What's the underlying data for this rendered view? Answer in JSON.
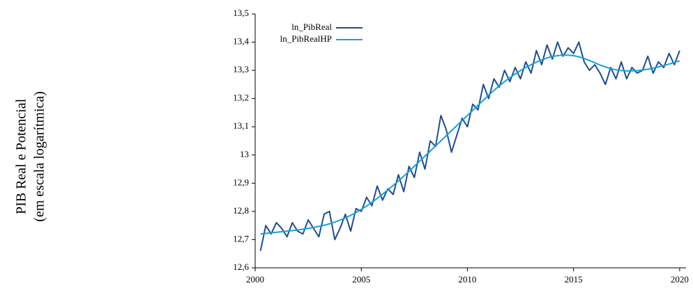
{
  "chart_data": {
    "type": "line",
    "y_label": [
      "PIB Real e Potencial",
      "(em escala logarítmica)"
    ],
    "x": [
      2000.25,
      2000.5,
      2000.75,
      2001,
      2001.25,
      2001.5,
      2001.75,
      2002,
      2002.25,
      2002.5,
      2002.75,
      2003,
      2003.25,
      2003.5,
      2003.75,
      2004,
      2004.25,
      2004.5,
      2004.75,
      2005,
      2005.25,
      2005.5,
      2005.75,
      2006,
      2006.25,
      2006.5,
      2006.75,
      2007,
      2007.25,
      2007.5,
      2007.75,
      2008,
      2008.25,
      2008.5,
      2008.75,
      2009,
      2009.25,
      2009.5,
      2009.75,
      2010,
      2010.25,
      2010.5,
      2010.75,
      2011,
      2011.25,
      2011.5,
      2011.75,
      2012,
      2012.25,
      2012.5,
      2012.75,
      2013,
      2013.25,
      2013.5,
      2013.75,
      2014,
      2014.25,
      2014.5,
      2014.75,
      2015,
      2015.25,
      2015.5,
      2015.75,
      2016,
      2016.25,
      2016.5,
      2016.75,
      2017,
      2017.25,
      2017.5,
      2017.75,
      2018,
      2018.25,
      2018.5,
      2018.75,
      2019,
      2019.25,
      2019.5,
      2019.75,
      2020
    ],
    "series": [
      {
        "name": "ln_PibReal",
        "color": "#1f4e8c",
        "values": [
          12.66,
          12.75,
          12.72,
          12.76,
          12.74,
          12.71,
          12.76,
          12.73,
          12.72,
          12.77,
          12.74,
          12.71,
          12.79,
          12.8,
          12.7,
          12.74,
          12.79,
          12.73,
          12.81,
          12.8,
          12.85,
          12.82,
          12.89,
          12.84,
          12.88,
          12.86,
          12.93,
          12.87,
          12.96,
          12.92,
          13.01,
          12.95,
          13.05,
          13.03,
          13.14,
          13.09,
          13.01,
          13.07,
          13.13,
          13.1,
          13.18,
          13.16,
          13.25,
          13.2,
          13.27,
          13.24,
          13.3,
          13.26,
          13.31,
          13.27,
          13.33,
          13.29,
          13.37,
          13.32,
          13.39,
          13.34,
          13.4,
          13.35,
          13.38,
          13.36,
          13.4,
          13.33,
          13.3,
          13.32,
          13.29,
          13.25,
          13.31,
          13.27,
          13.33,
          13.27,
          13.31,
          13.29,
          13.3,
          13.35,
          13.29,
          13.33,
          13.31,
          13.36,
          13.32,
          13.37
        ]
      },
      {
        "name": "ln_PibRealHP",
        "color": "#1a9fd6",
        "values": [
          12.72,
          12.722,
          12.724,
          12.726,
          12.728,
          12.73,
          12.732,
          12.734,
          12.737,
          12.74,
          12.743,
          12.747,
          12.751,
          12.756,
          12.762,
          12.769,
          12.777,
          12.786,
          12.796,
          12.807,
          12.819,
          12.832,
          12.846,
          12.861,
          12.876,
          12.892,
          12.908,
          12.925,
          12.942,
          12.96,
          12.978,
          12.996,
          13.014,
          13.032,
          13.05,
          13.068,
          13.086,
          13.104,
          13.122,
          13.14,
          13.158,
          13.176,
          13.194,
          13.212,
          13.229,
          13.245,
          13.26,
          13.274,
          13.287,
          13.299,
          13.31,
          13.32,
          13.329,
          13.337,
          13.344,
          13.349,
          13.352,
          13.354,
          13.354,
          13.352,
          13.348,
          13.342,
          13.335,
          13.327,
          13.319,
          13.312,
          13.306,
          13.302,
          13.299,
          13.298,
          13.298,
          13.299,
          13.301,
          13.304,
          13.308,
          13.312,
          13.317,
          13.322,
          13.328,
          13.334
        ]
      }
    ],
    "xlim": [
      2000,
      2020.3
    ],
    "xticks": [
      2000,
      2005,
      2010,
      2015,
      2020
    ],
    "ylim": [
      12.6,
      13.5
    ],
    "yticks": [
      {
        "value": 12.6,
        "label": "12,6"
      },
      {
        "value": 12.7,
        "label": "12,7"
      },
      {
        "value": 12.8,
        "label": "12,8"
      },
      {
        "value": 12.9,
        "label": "12,9"
      },
      13,
      {
        "value": 13.1,
        "label": "13,1"
      },
      {
        "value": 13.2,
        "label": "13,2"
      },
      {
        "value": 13.3,
        "label": "13,3"
      },
      {
        "value": 13.4,
        "label": "13,4"
      },
      {
        "value": 13.5,
        "label": "13,5"
      }
    ],
    "grid": false,
    "legend": "upper left"
  }
}
